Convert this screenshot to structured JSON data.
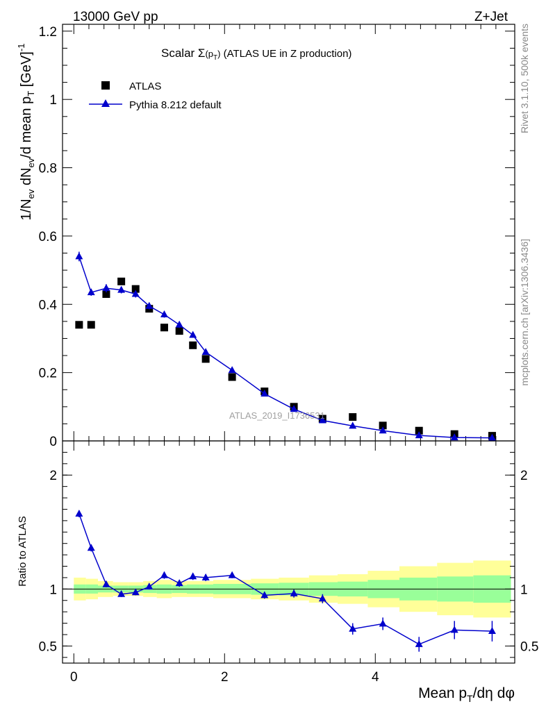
{
  "header": {
    "energy_label": "13000 GeV pp",
    "process_label": "Z+Jet"
  },
  "side_labels": {
    "rivet": "Rivet 3.1.10,  500k events",
    "mcplots": "mcplots.cern.ch [arXiv:1306.3436]"
  },
  "watermark": "ATLAS_2019_I1736531",
  "colors": {
    "mc": "#0000cc",
    "data": "#000000",
    "band_inner": "#99ff99",
    "band_outer": "#ffff99"
  },
  "chart_data": [
    {
      "type": "scatter",
      "title": "Scalar Σ(pT) (ATLAS UE in Z production)",
      "title_parts": {
        "pre": "Scalar ",
        "sigma": "Σ",
        "p": "(p",
        "sub": "T",
        "post": ")",
        "rest": " (ATLAS UE in Z production)"
      },
      "ylabel": "1/Nev dNev/d mean pT [GeV]^-1",
      "ylabel_parts": {
        "a": "1/N",
        "ev1": "ev",
        "b": " dN",
        "ev2": "ev",
        "c": "/d mean p",
        "t": "T",
        "d": " [GeV]",
        "sup": "-1"
      },
      "xlim": [
        -0.15,
        5.85
      ],
      "ylim": [
        0,
        1.22
      ],
      "yticks": [
        0,
        0.2,
        0.4,
        0.6,
        0.8,
        1,
        1.2
      ],
      "ytick_labels": [
        "0",
        "0.2",
        "0.4",
        "0.6",
        "0.8",
        "1",
        "1.2"
      ],
      "legend": {
        "position": "top-left",
        "entries": [
          "ATLAS",
          "Pythia 8.212 default"
        ]
      },
      "series": [
        {
          "name": "ATLAS",
          "marker": "square",
          "x": [
            0.07,
            0.23,
            0.43,
            0.63,
            0.82,
            1.0,
            1.2,
            1.4,
            1.58,
            1.75,
            2.1,
            2.53,
            2.92,
            3.3,
            3.7,
            4.1,
            4.58,
            5.05,
            5.55
          ],
          "y": [
            0.34,
            0.34,
            0.43,
            0.467,
            0.445,
            0.387,
            0.332,
            0.322,
            0.28,
            0.24,
            0.187,
            0.145,
            0.1,
            0.065,
            0.07,
            0.045,
            0.03,
            0.02,
            0.015
          ]
        },
        {
          "name": "Pythia 8.212 default",
          "marker": "triangle",
          "x": [
            0.07,
            0.23,
            0.43,
            0.63,
            0.82,
            1.0,
            1.2,
            1.4,
            1.58,
            1.75,
            2.1,
            2.53,
            2.92,
            3.3,
            3.7,
            4.1,
            4.58,
            5.05,
            5.55
          ],
          "y": [
            0.54,
            0.435,
            0.447,
            0.442,
            0.43,
            0.395,
            0.37,
            0.34,
            0.31,
            0.26,
            0.207,
            0.138,
            0.093,
            0.06,
            0.044,
            0.03,
            0.016,
            0.01,
            0.009
          ],
          "yerr": [
            0.014,
            0.01,
            0.012,
            0.01,
            0.01,
            0.01,
            0.009,
            0.009,
            0.008,
            0.007,
            0.005,
            0.004,
            0.003,
            0.002,
            0.002,
            0.002,
            0.001,
            0.001,
            0.001
          ]
        }
      ]
    },
    {
      "type": "scatter",
      "title": "",
      "ylabel": "Ratio to ATLAS",
      "xlabel": "Mean pT/dη dφ",
      "xlabel_parts": {
        "a": "Mean p",
        "t": "T",
        "b": "/dη dφ"
      },
      "xlim": [
        -0.15,
        5.85
      ],
      "ylim": [
        0.35,
        2.3
      ],
      "yticks": [
        0.5,
        1,
        2
      ],
      "ytick_labels": [
        "0.5",
        "1",
        "2"
      ],
      "xticks": [
        0,
        2,
        4
      ],
      "xtick_labels": [
        "0",
        "2",
        "4"
      ],
      "reference_line": 1,
      "bands": {
        "edges": [
          0,
          0.16,
          0.32,
          0.52,
          0.72,
          0.92,
          1.1,
          1.3,
          1.5,
          1.67,
          1.85,
          2.35,
          2.72,
          3.12,
          3.5,
          3.9,
          4.32,
          4.82,
          5.3,
          5.8
        ],
        "inner_half_width": [
          0.04,
          0.04,
          0.03,
          0.03,
          0.03,
          0.035,
          0.04,
          0.035,
          0.04,
          0.04,
          0.045,
          0.05,
          0.055,
          0.06,
          0.065,
          0.08,
          0.1,
          0.11,
          0.12
        ],
        "outer_half_width": [
          0.1,
          0.09,
          0.07,
          0.06,
          0.06,
          0.07,
          0.08,
          0.07,
          0.07,
          0.07,
          0.08,
          0.09,
          0.1,
          0.12,
          0.13,
          0.16,
          0.2,
          0.23,
          0.25
        ]
      },
      "series": [
        {
          "name": "Pythia 8.212 default / ATLAS",
          "marker": "triangle",
          "x": [
            0.07,
            0.23,
            0.43,
            0.63,
            0.82,
            1.0,
            1.2,
            1.4,
            1.58,
            1.75,
            2.1,
            2.53,
            2.92,
            3.3,
            3.7,
            4.1,
            4.58,
            5.05,
            5.55
          ],
          "y": [
            1.66,
            1.36,
            1.04,
            0.955,
            0.97,
            1.02,
            1.12,
            1.05,
            1.11,
            1.1,
            1.12,
            0.945,
            0.96,
            0.915,
            0.65,
            0.695,
            0.515,
            0.64,
            0.63
          ],
          "yerr": [
            0.03,
            0.03,
            0.025,
            0.025,
            0.025,
            0.025,
            0.03,
            0.03,
            0.03,
            0.03,
            0.025,
            0.03,
            0.035,
            0.04,
            0.05,
            0.055,
            0.065,
            0.08,
            0.09
          ]
        }
      ]
    }
  ]
}
